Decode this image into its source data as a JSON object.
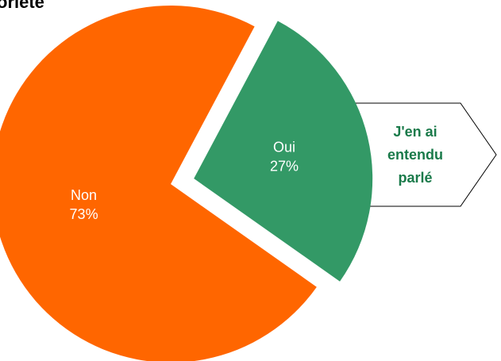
{
  "chart_data": {
    "type": "pie",
    "title": "oriete",
    "categories": [
      "Oui",
      "Non"
    ],
    "values": [
      27,
      73
    ],
    "value_labels": [
      "27%",
      "73%"
    ],
    "colors": [
      "#339966",
      "#ff6600"
    ],
    "annotation": [
      "J'en ai",
      "entendu",
      "parlé"
    ],
    "annotation_color": "#1a7a4a"
  }
}
